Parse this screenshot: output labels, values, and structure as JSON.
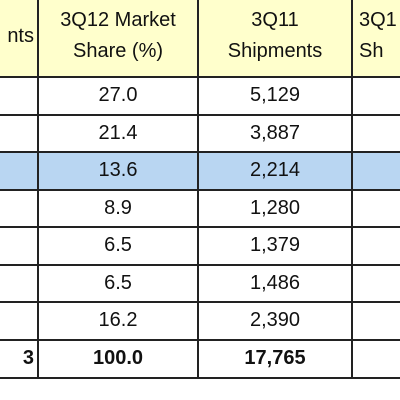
{
  "table": {
    "header": [
      [
        "nts"
      ],
      [
        "3Q12 Market",
        "Share (%)"
      ],
      [
        "3Q11",
        "Shipments"
      ],
      [
        "3Q1",
        "Sh"
      ]
    ],
    "rows": [
      [
        "27.0",
        "5,129"
      ],
      [
        "21.4",
        "3,887"
      ],
      [
        "13.6",
        "2,214"
      ],
      [
        "8.9",
        "1,280"
      ],
      [
        "6.5",
        "1,379"
      ],
      [
        "6.5",
        "1,486"
      ],
      [
        "16.2",
        "2,390"
      ]
    ],
    "total": [
      "3",
      "100.0",
      "17,765"
    ]
  }
}
